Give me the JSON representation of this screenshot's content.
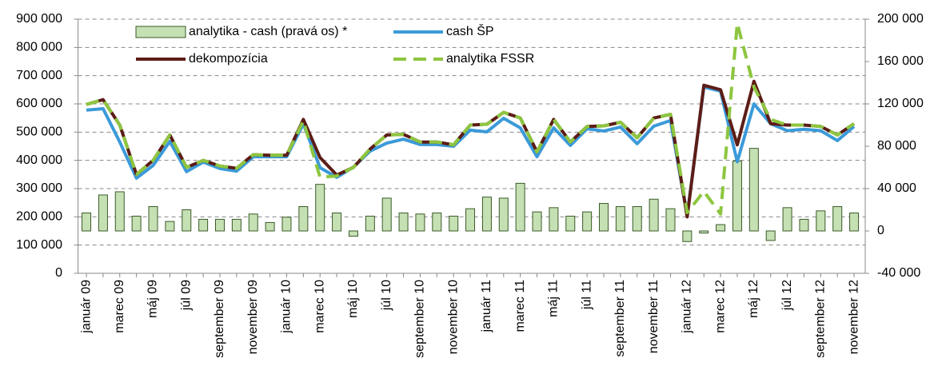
{
  "chart_data": {
    "type": "bar-line",
    "categories": [
      "január 09",
      null,
      "marec 09",
      null,
      "máj 09",
      null,
      "júl 09",
      null,
      "september 09",
      null,
      "november 09",
      null,
      "január 10",
      null,
      "marec 10",
      null,
      "máj 10",
      null,
      "júl 10",
      null,
      "september 10",
      null,
      "november 10",
      null,
      "január 11",
      null,
      "marec 11",
      null,
      "máj 11",
      null,
      "júl 11",
      null,
      "september 11",
      null,
      "november 11",
      null,
      "január 12",
      null,
      "marec 12",
      null,
      "máj 12",
      null,
      "júl 12",
      null,
      "september 12",
      null,
      "november 12"
    ],
    "series": [
      {
        "name": "analytika - cash (pravá os) *",
        "type": "bar",
        "axis": "y2",
        "color": "#c5e0b3",
        "values": [
          17000,
          34000,
          37000,
          14000,
          23000,
          9000,
          20000,
          11000,
          11000,
          11000,
          16000,
          8000,
          13000,
          23000,
          44000,
          17000,
          -5000,
          14000,
          31000,
          17000,
          16000,
          17000,
          14000,
          21000,
          32000,
          31000,
          45000,
          18000,
          22000,
          14000,
          18000,
          26000,
          23000,
          23000,
          30000,
          21000,
          -10000,
          -2000,
          6000,
          66000,
          78000,
          -9000,
          22000,
          11000,
          19000,
          23000,
          17000
        ]
      },
      {
        "name": "cash ŠP",
        "type": "line",
        "color": "#3b9ad9",
        "values": [
          578000,
          583000,
          465000,
          337000,
          382000,
          467000,
          360000,
          394000,
          371000,
          362000,
          413000,
          413000,
          413000,
          529000,
          374000,
          340000,
          376000,
          433000,
          461000,
          475000,
          456000,
          456000,
          450000,
          507000,
          501000,
          549000,
          515000,
          413000,
          515000,
          453000,
          512000,
          504000,
          518000,
          459000,
          521000,
          541000,
          205000,
          660000,
          645000,
          395000,
          600000,
          530000,
          505000,
          510000,
          505000,
          470000,
          520000
        ]
      },
      {
        "name": "dekompozícia",
        "type": "line",
        "color": "#5c1d16",
        "values": [
          598000,
          615000,
          525000,
          350000,
          400000,
          490000,
          375000,
          400000,
          380000,
          372000,
          420000,
          418000,
          418000,
          545000,
          410000,
          348000,
          375000,
          440000,
          490000,
          492000,
          465000,
          465000,
          455000,
          525000,
          528000,
          570000,
          550000,
          430000,
          545000,
          465000,
          520000,
          522000,
          535000,
          480000,
          550000,
          563000,
          200000,
          666000,
          650000,
          455000,
          680000,
          530000,
          525000,
          525000,
          520000,
          490000,
          530000
        ]
      },
      {
        "name": "analytika FSSR",
        "type": "line",
        "dashed": true,
        "color": "#8dc63f",
        "values": [
          598000,
          615000,
          525000,
          350000,
          400000,
          490000,
          375000,
          400000,
          380000,
          372000,
          420000,
          418000,
          418000,
          540000,
          340000,
          345000,
          375000,
          440000,
          490000,
          492000,
          465000,
          465000,
          455000,
          525000,
          528000,
          570000,
          550000,
          430000,
          545000,
          465000,
          520000,
          522000,
          535000,
          480000,
          550000,
          563000,
          215000,
          290000,
          210000,
          885000,
          660000,
          545000,
          525000,
          525000,
          520000,
          490000,
          530000
        ]
      }
    ],
    "ylim": [
      0,
      900000
    ],
    "yticks": [
      0,
      {
        "value": 100000,
        "label": "100 000"
      },
      {
        "value": 200000,
        "label": "200 000"
      },
      {
        "value": 300000,
        "label": "300 000"
      },
      {
        "value": 400000,
        "label": "400 000"
      },
      {
        "value": 500000,
        "label": "500 000"
      },
      {
        "value": 600000,
        "label": "600 000"
      },
      {
        "value": 700000,
        "label": "700 000"
      },
      {
        "value": 800000,
        "label": "800 000"
      },
      {
        "value": 900000,
        "label": "900 000"
      }
    ],
    "y2lim": [
      -40000,
      200000
    ],
    "y2ticks": [
      {
        "value": -40000,
        "label": "-40 000"
      },
      0,
      {
        "value": 40000,
        "label": "40 000"
      },
      {
        "value": 80000,
        "label": "80 000"
      },
      {
        "value": 120000,
        "label": "120 000"
      },
      {
        "value": 160000,
        "label": "160 000"
      },
      {
        "value": 200000,
        "label": "200 000"
      }
    ],
    "grid": true
  }
}
